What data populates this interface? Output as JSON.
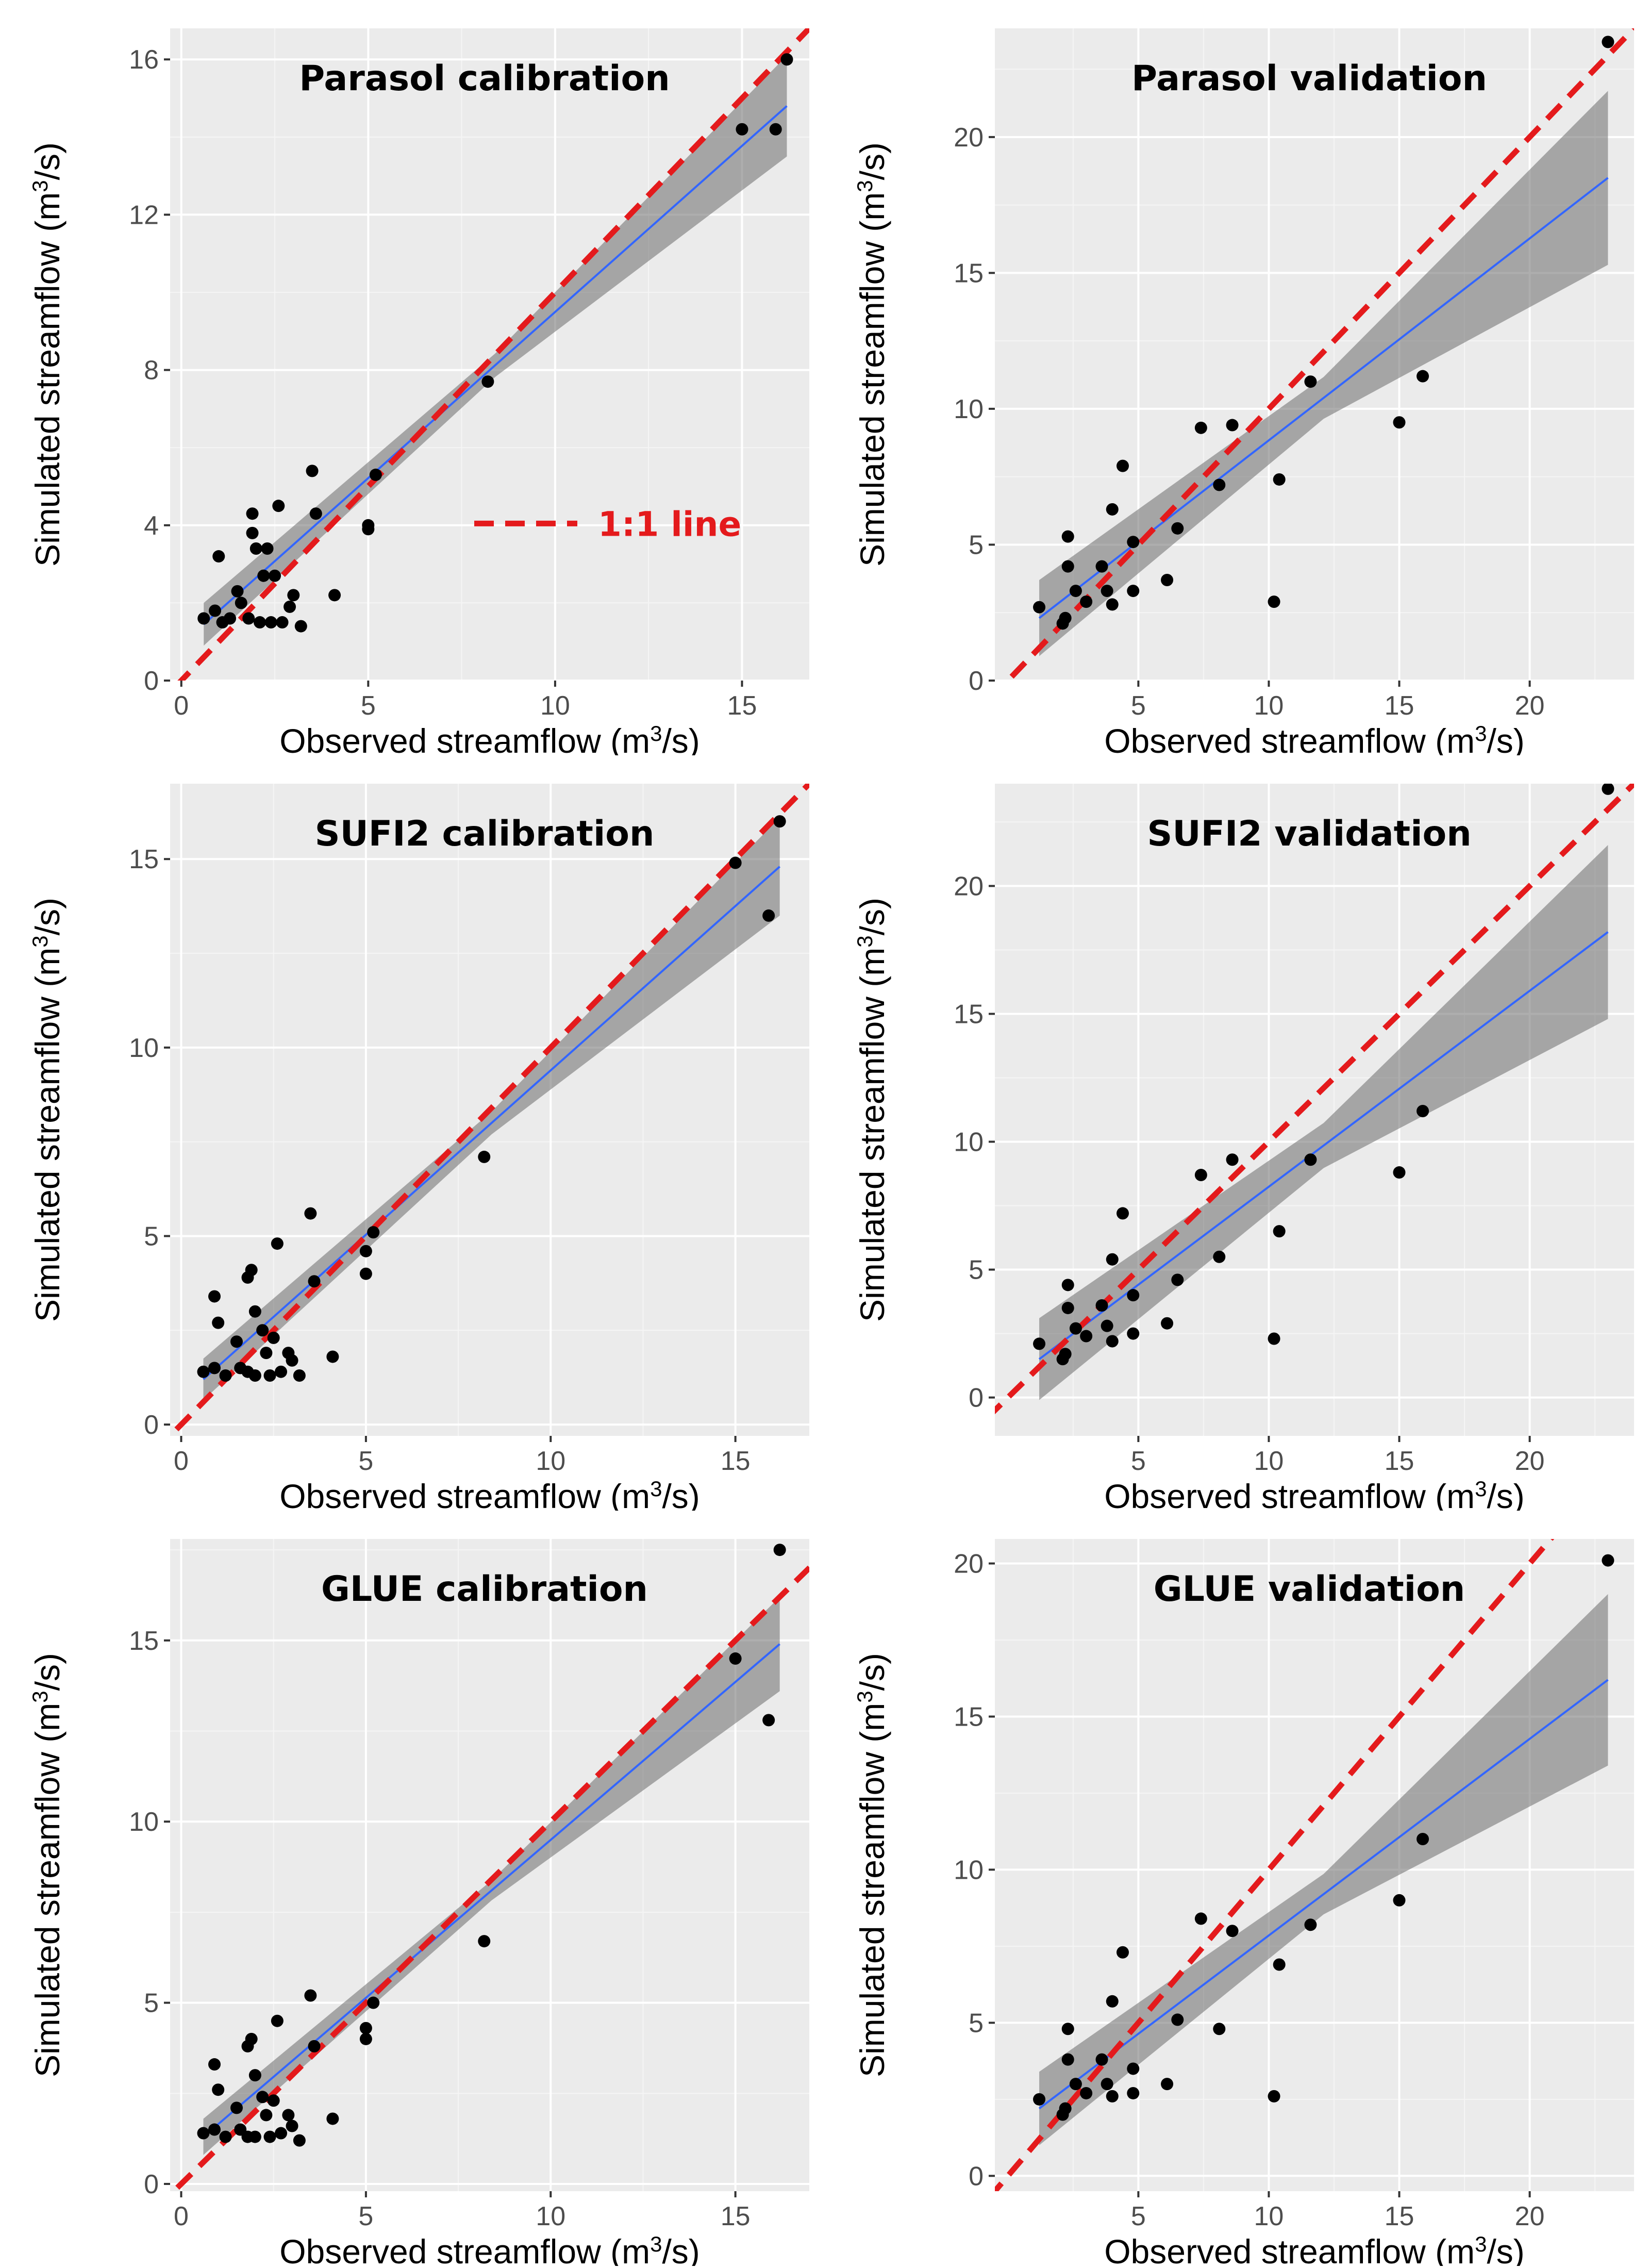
{
  "chart_data": [
    {
      "type": "scatter",
      "title": "Parasol calibration",
      "xlabel": "Observed streamflow (m3/s)",
      "ylabel": "Simulated streamflow (m3/s)",
      "xlim": [
        -0.3,
        16.8
      ],
      "ylim": [
        0,
        16.8
      ],
      "xticks": [
        0,
        5,
        10,
        15
      ],
      "yticks": [
        0,
        4,
        8,
        12,
        16
      ],
      "legend_label": "1:1 line",
      "fit": {
        "x0": 0.6,
        "y0": 1.45,
        "x1": 16.2,
        "y1": 14.8,
        "band0": 0.55,
        "band1": 1.3
      },
      "points": [
        [
          0.6,
          1.6
        ],
        [
          0.9,
          1.8
        ],
        [
          1.0,
          3.2
        ],
        [
          1.1,
          1.5
        ],
        [
          1.3,
          1.6
        ],
        [
          1.5,
          2.3
        ],
        [
          1.6,
          2.0
        ],
        [
          1.8,
          1.6
        ],
        [
          1.9,
          3.8
        ],
        [
          1.9,
          4.3
        ],
        [
          2.0,
          3.4
        ],
        [
          2.1,
          1.5
        ],
        [
          2.2,
          2.7
        ],
        [
          2.3,
          3.4
        ],
        [
          2.4,
          1.5
        ],
        [
          2.5,
          2.7
        ],
        [
          2.6,
          4.5
        ],
        [
          2.7,
          1.5
        ],
        [
          2.9,
          1.9
        ],
        [
          3.0,
          2.2
        ],
        [
          3.2,
          1.4
        ],
        [
          3.5,
          5.4
        ],
        [
          3.6,
          4.3
        ],
        [
          4.1,
          2.2
        ],
        [
          5.0,
          4.0
        ],
        [
          5.0,
          3.9
        ],
        [
          5.2,
          5.3
        ],
        [
          8.2,
          7.7
        ],
        [
          15.0,
          14.2
        ],
        [
          15.9,
          14.2
        ],
        [
          16.2,
          16.0
        ]
      ]
    },
    {
      "type": "scatter",
      "title": "Parasol validation",
      "xlabel": "Observed streamflow (m3/s)",
      "ylabel": "Simulated streamflow (m3/s)",
      "xlim": [
        -0.5,
        24
      ],
      "ylim": [
        0,
        24
      ],
      "xticks": [
        5,
        10,
        15,
        20
      ],
      "yticks": [
        0,
        5,
        10,
        15,
        20
      ],
      "fit": {
        "x0": 1.2,
        "y0": 2.3,
        "x1": 23.0,
        "y1": 18.5,
        "band0": 1.4,
        "band1": 3.2
      },
      "points": [
        [
          1.2,
          2.7
        ],
        [
          2.1,
          2.1
        ],
        [
          2.2,
          2.3
        ],
        [
          2.3,
          4.2
        ],
        [
          2.3,
          5.3
        ],
        [
          2.6,
          3.3
        ],
        [
          3.0,
          2.9
        ],
        [
          3.6,
          4.2
        ],
        [
          3.8,
          3.3
        ],
        [
          4.0,
          6.3
        ],
        [
          4.0,
          2.8
        ],
        [
          4.4,
          7.9
        ],
        [
          4.8,
          5.1
        ],
        [
          4.8,
          3.3
        ],
        [
          6.1,
          3.7
        ],
        [
          6.5,
          5.6
        ],
        [
          7.4,
          9.3
        ],
        [
          8.1,
          7.2
        ],
        [
          8.6,
          9.4
        ],
        [
          10.2,
          2.9
        ],
        [
          10.4,
          7.4
        ],
        [
          11.6,
          11.0
        ],
        [
          15.0,
          9.5
        ],
        [
          15.9,
          11.2
        ],
        [
          23.0,
          23.5
        ]
      ]
    },
    {
      "type": "scatter",
      "title": "SUFI2 calibration",
      "xlabel": "Observed streamflow (m3/s)",
      "ylabel": "Simulated streamflow (m3/s)",
      "xlim": [
        -0.3,
        17.0
      ],
      "ylim": [
        -0.3,
        17.0
      ],
      "xticks": [
        0,
        5,
        10,
        15
      ],
      "yticks": [
        0,
        5,
        10,
        15
      ],
      "fit": {
        "x0": 0.6,
        "y0": 1.2,
        "x1": 16.2,
        "y1": 14.8,
        "band0": 0.55,
        "band1": 1.3
      },
      "points": [
        [
          0.6,
          1.4
        ],
        [
          0.9,
          1.5
        ],
        [
          0.9,
          3.4
        ],
        [
          1.0,
          2.7
        ],
        [
          1.2,
          1.3
        ],
        [
          1.5,
          2.2
        ],
        [
          1.6,
          1.5
        ],
        [
          1.8,
          1.4
        ],
        [
          1.8,
          3.9
        ],
        [
          1.9,
          4.1
        ],
        [
          2.0,
          1.3
        ],
        [
          2.0,
          3.0
        ],
        [
          2.2,
          2.5
        ],
        [
          2.3,
          1.9
        ],
        [
          2.4,
          1.3
        ],
        [
          2.5,
          2.3
        ],
        [
          2.6,
          4.8
        ],
        [
          2.7,
          1.4
        ],
        [
          2.9,
          1.9
        ],
        [
          3.0,
          1.7
        ],
        [
          3.2,
          1.3
        ],
        [
          3.5,
          5.6
        ],
        [
          3.6,
          3.8
        ],
        [
          4.1,
          1.8
        ],
        [
          5.0,
          4.6
        ],
        [
          5.0,
          4.0
        ],
        [
          5.2,
          5.1
        ],
        [
          8.2,
          7.1
        ],
        [
          15.0,
          14.9
        ],
        [
          15.9,
          13.5
        ],
        [
          16.2,
          16.0
        ]
      ]
    },
    {
      "type": "scatter",
      "title": "SUFI2 validation",
      "xlabel": "Observed streamflow (m3/s)",
      "ylabel": "Simulated streamflow (m3/s)",
      "xlim": [
        -0.5,
        24
      ],
      "ylim": [
        -1.5,
        24.0
      ],
      "xticks": [
        5,
        10,
        15,
        20
      ],
      "yticks": [
        0,
        5,
        10,
        15,
        20
      ],
      "fit": {
        "x0": 1.2,
        "y0": 1.5,
        "x1": 23.0,
        "y1": 18.2,
        "band0": 1.6,
        "band1": 3.4
      },
      "points": [
        [
          1.2,
          2.1
        ],
        [
          2.1,
          1.5
        ],
        [
          2.2,
          1.7
        ],
        [
          2.3,
          3.5
        ],
        [
          2.3,
          4.4
        ],
        [
          2.6,
          2.7
        ],
        [
          3.0,
          2.4
        ],
        [
          3.6,
          3.6
        ],
        [
          3.8,
          2.8
        ],
        [
          4.0,
          5.4
        ],
        [
          4.0,
          2.2
        ],
        [
          4.4,
          7.2
        ],
        [
          4.8,
          4.0
        ],
        [
          4.8,
          2.5
        ],
        [
          6.1,
          2.9
        ],
        [
          6.5,
          4.6
        ],
        [
          7.4,
          8.7
        ],
        [
          8.1,
          5.5
        ],
        [
          8.6,
          9.3
        ],
        [
          10.2,
          2.3
        ],
        [
          10.4,
          6.5
        ],
        [
          11.6,
          9.3
        ],
        [
          15.0,
          8.8
        ],
        [
          15.9,
          11.2
        ],
        [
          23.0,
          23.8
        ]
      ]
    },
    {
      "type": "scatter",
      "title": "GLUE calibration",
      "xlabel": "Observed streamflow (m3/s)",
      "ylabel": "Simulated streamflow (m3/s)",
      "xlim": [
        -0.3,
        17.0
      ],
      "ylim": [
        -0.2,
        17.8
      ],
      "xticks": [
        0,
        5,
        10,
        15
      ],
      "yticks": [
        0,
        5,
        10,
        15
      ],
      "fit": {
        "x0": 0.6,
        "y0": 1.3,
        "x1": 16.2,
        "y1": 14.9,
        "band0": 0.5,
        "band1": 1.3
      },
      "points": [
        [
          0.6,
          1.4
        ],
        [
          0.9,
          1.5
        ],
        [
          0.9,
          3.3
        ],
        [
          1.0,
          2.6
        ],
        [
          1.2,
          1.3
        ],
        [
          1.5,
          2.1
        ],
        [
          1.6,
          1.5
        ],
        [
          1.8,
          1.3
        ],
        [
          1.8,
          3.8
        ],
        [
          1.9,
          4.0
        ],
        [
          2.0,
          1.3
        ],
        [
          2.0,
          3.0
        ],
        [
          2.2,
          2.4
        ],
        [
          2.3,
          1.9
        ],
        [
          2.4,
          1.3
        ],
        [
          2.5,
          2.3
        ],
        [
          2.6,
          4.5
        ],
        [
          2.7,
          1.4
        ],
        [
          2.9,
          1.9
        ],
        [
          3.0,
          1.6
        ],
        [
          3.2,
          1.2
        ],
        [
          3.5,
          5.2
        ],
        [
          3.6,
          3.8
        ],
        [
          4.1,
          1.8
        ],
        [
          5.0,
          4.3
        ],
        [
          5.0,
          4.0
        ],
        [
          5.2,
          5.0
        ],
        [
          8.2,
          6.7
        ],
        [
          15.0,
          14.5
        ],
        [
          15.9,
          12.8
        ],
        [
          16.2,
          17.5
        ]
      ]
    },
    {
      "type": "scatter",
      "title": "GLUE validation",
      "xlabel": "Observed streamflow (m3/s)",
      "ylabel": "Simulated streamflow (m3/s)",
      "xlim": [
        -0.5,
        24
      ],
      "ylim": [
        -0.5,
        20.8
      ],
      "xticks": [
        5,
        10,
        15,
        20
      ],
      "yticks": [
        0,
        5,
        10,
        15,
        20
      ],
      "fit": {
        "x0": 1.2,
        "y0": 2.2,
        "x1": 23.0,
        "y1": 16.2,
        "band0": 1.2,
        "band1": 2.8
      },
      "points": [
        [
          1.2,
          2.5
        ],
        [
          2.1,
          2.0
        ],
        [
          2.2,
          2.2
        ],
        [
          2.3,
          3.8
        ],
        [
          2.3,
          4.8
        ],
        [
          2.6,
          3.0
        ],
        [
          3.0,
          2.7
        ],
        [
          3.6,
          3.8
        ],
        [
          3.8,
          3.0
        ],
        [
          4.0,
          5.7
        ],
        [
          4.0,
          2.6
        ],
        [
          4.4,
          7.3
        ],
        [
          4.8,
          3.5
        ],
        [
          4.8,
          2.7
        ],
        [
          6.1,
          3.0
        ],
        [
          6.5,
          5.1
        ],
        [
          7.4,
          8.4
        ],
        [
          8.1,
          4.8
        ],
        [
          8.6,
          8.0
        ],
        [
          10.2,
          2.6
        ],
        [
          10.4,
          6.9
        ],
        [
          11.6,
          8.2
        ],
        [
          15.0,
          9.0
        ],
        [
          15.9,
          11.0
        ],
        [
          23.0,
          20.1
        ]
      ]
    }
  ]
}
